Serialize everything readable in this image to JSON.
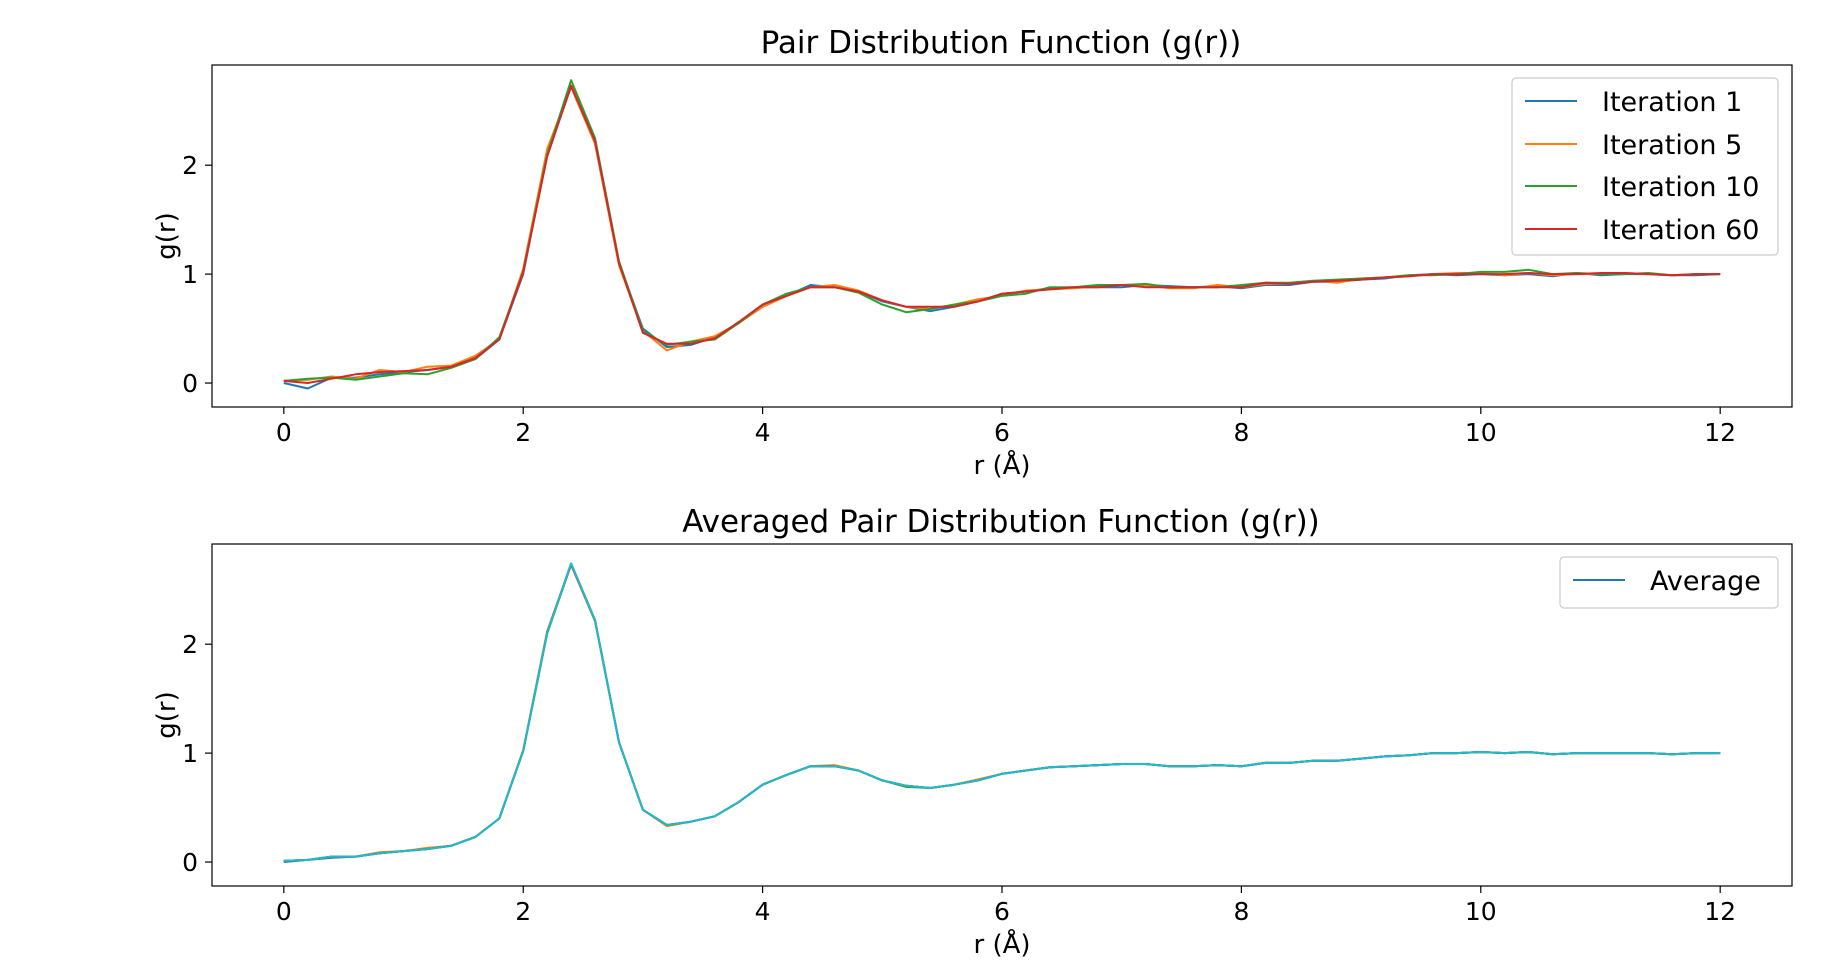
{
  "chart_data": [
    {
      "type": "line",
      "title": "Pair Distribution Function (g(r))",
      "xlabel": "r (Å)",
      "ylabel": "g(r)",
      "xlim": [
        -0.6,
        12.6
      ],
      "ylim": [
        -0.22,
        2.92
      ],
      "xticks": [
        0,
        2,
        4,
        6,
        8,
        10,
        12
      ],
      "yticks": [
        0,
        1,
        2
      ],
      "grid": false,
      "legend": "top-right",
      "x_range": [
        0,
        12
      ],
      "series": [
        {
          "name": "Iteration 1",
          "color": "#1f77b4",
          "values": [
            0.0,
            -0.05,
            0.05,
            0.05,
            0.08,
            0.1,
            0.12,
            0.15,
            0.22,
            0.4,
            1.0,
            2.1,
            2.72,
            2.2,
            1.1,
            0.5,
            0.33,
            0.35,
            0.42,
            0.55,
            0.7,
            0.8,
            0.9,
            0.88,
            0.84,
            0.75,
            0.7,
            0.66,
            0.7,
            0.75,
            0.82,
            0.84,
            0.87,
            0.88,
            0.88,
            0.88,
            0.9,
            0.89,
            0.88,
            0.89,
            0.87,
            0.9,
            0.9,
            0.93,
            0.93,
            0.95,
            0.96,
            0.99,
            1.0,
            0.99,
            1.0,
            0.99,
            1.0,
            0.98,
            1.01,
            0.99,
            1.0,
            1.0,
            0.99,
            0.99,
            1.0
          ]
        },
        {
          "name": "Iteration 5",
          "color": "#ff7f0e",
          "values": [
            0.02,
            0.03,
            0.06,
            0.04,
            0.12,
            0.1,
            0.15,
            0.16,
            0.25,
            0.4,
            1.05,
            2.15,
            2.72,
            2.2,
            1.08,
            0.48,
            0.3,
            0.38,
            0.43,
            0.55,
            0.7,
            0.8,
            0.88,
            0.9,
            0.85,
            0.76,
            0.7,
            0.68,
            0.72,
            0.77,
            0.8,
            0.85,
            0.86,
            0.87,
            0.89,
            0.9,
            0.9,
            0.87,
            0.87,
            0.9,
            0.88,
            0.91,
            0.91,
            0.94,
            0.92,
            0.96,
            0.97,
            0.98,
            1.0,
            1.01,
            1.01,
            0.99,
            1.01,
            0.99,
            1.0,
            1.0,
            1.01,
            1.0,
            0.99,
            1.0,
            1.0
          ]
        },
        {
          "name": "Iteration 10",
          "color": "#2ca02c",
          "values": [
            0.02,
            0.04,
            0.05,
            0.03,
            0.06,
            0.09,
            0.08,
            0.14,
            0.22,
            0.42,
            1.02,
            2.1,
            2.78,
            2.25,
            1.12,
            0.48,
            0.35,
            0.38,
            0.4,
            0.55,
            0.72,
            0.82,
            0.88,
            0.88,
            0.83,
            0.72,
            0.65,
            0.68,
            0.72,
            0.75,
            0.8,
            0.82,
            0.88,
            0.88,
            0.9,
            0.9,
            0.91,
            0.88,
            0.88,
            0.88,
            0.9,
            0.92,
            0.92,
            0.94,
            0.95,
            0.96,
            0.97,
            0.99,
            0.99,
            1.0,
            1.02,
            1.02,
            1.04,
            1.0,
            1.01,
            1.0,
            1.0,
            1.01,
            0.99,
            1.0,
            1.0
          ]
        },
        {
          "name": "Iteration 60",
          "color": "#d62728",
          "values": [
            0.02,
            0.0,
            0.04,
            0.08,
            0.1,
            0.11,
            0.12,
            0.15,
            0.23,
            0.4,
            1.02,
            2.08,
            2.73,
            2.22,
            1.1,
            0.46,
            0.36,
            0.36,
            0.41,
            0.56,
            0.72,
            0.8,
            0.88,
            0.88,
            0.84,
            0.76,
            0.7,
            0.7,
            0.7,
            0.75,
            0.82,
            0.84,
            0.86,
            0.88,
            0.88,
            0.9,
            0.88,
            0.88,
            0.88,
            0.88,
            0.88,
            0.92,
            0.91,
            0.93,
            0.94,
            0.95,
            0.97,
            0.98,
            1.0,
            1.0,
            1.0,
            1.0,
            1.01,
            1.0,
            1.0,
            1.01,
            1.01,
            1.0,
            0.99,
            1.0,
            1.0
          ]
        }
      ]
    },
    {
      "type": "line",
      "title": "Averaged Pair Distribution Function (g(r))",
      "xlabel": "r (Å)",
      "ylabel": "g(r)",
      "xlim": [
        -0.6,
        12.6
      ],
      "ylim": [
        -0.22,
        2.92
      ],
      "xticks": [
        0,
        2,
        4,
        6,
        8,
        10,
        12
      ],
      "yticks": [
        0,
        1,
        2
      ],
      "grid": false,
      "legend": "top-right",
      "x_range": [
        0,
        12
      ],
      "legend_entries": [
        "Average"
      ],
      "series": [
        {
          "name": "Average",
          "color": "#1f77b4",
          "values": [
            0.0,
            0.02,
            0.04,
            0.05,
            0.08,
            0.1,
            0.12,
            0.15,
            0.23,
            0.4,
            1.02,
            2.1,
            2.74,
            2.22,
            1.1,
            0.48,
            0.34,
            0.37,
            0.42,
            0.55,
            0.71,
            0.8,
            0.88,
            0.88,
            0.84,
            0.75,
            0.7,
            0.68,
            0.71,
            0.75,
            0.81,
            0.84,
            0.87,
            0.88,
            0.89,
            0.9,
            0.9,
            0.88,
            0.88,
            0.89,
            0.88,
            0.91,
            0.91,
            0.93,
            0.93,
            0.95,
            0.97,
            0.98,
            1.0,
            1.0,
            1.01,
            1.0,
            1.01,
            0.99,
            1.0,
            1.0,
            1.0,
            1.0,
            0.99,
            1.0,
            1.0
          ]
        },
        {
          "color": "#ff7f0e",
          "values": [
            0.01,
            0.02,
            0.05,
            0.05,
            0.09,
            0.1,
            0.13,
            0.15,
            0.23,
            0.4,
            1.03,
            2.12,
            2.73,
            2.21,
            1.1,
            0.48,
            0.33,
            0.37,
            0.42,
            0.55,
            0.71,
            0.8,
            0.88,
            0.89,
            0.84,
            0.75,
            0.7,
            0.68,
            0.71,
            0.76,
            0.81,
            0.84,
            0.87,
            0.88,
            0.89,
            0.9,
            0.9,
            0.88,
            0.88,
            0.89,
            0.88,
            0.91,
            0.91,
            0.93,
            0.93,
            0.95,
            0.97,
            0.98,
            1.0,
            1.0,
            1.01,
            1.0,
            1.01,
            0.99,
            1.0,
            1.0,
            1.0,
            1.0,
            0.99,
            1.0,
            1.0
          ]
        },
        {
          "color": "#2ca02c",
          "values": [
            0.01,
            0.02,
            0.05,
            0.05,
            0.08,
            0.1,
            0.12,
            0.15,
            0.23,
            0.4,
            1.02,
            2.11,
            2.74,
            2.22,
            1.1,
            0.48,
            0.34,
            0.37,
            0.42,
            0.55,
            0.71,
            0.8,
            0.88,
            0.88,
            0.84,
            0.75,
            0.69,
            0.68,
            0.71,
            0.75,
            0.81,
            0.84,
            0.87,
            0.88,
            0.89,
            0.9,
            0.9,
            0.88,
            0.88,
            0.89,
            0.88,
            0.91,
            0.91,
            0.93,
            0.93,
            0.95,
            0.97,
            0.98,
            1.0,
            1.0,
            1.01,
            1.0,
            1.01,
            0.99,
            1.0,
            1.0,
            1.0,
            1.0,
            0.99,
            1.0,
            1.0
          ]
        },
        {
          "color": "#d62728",
          "values": [
            0.01,
            0.02,
            0.05,
            0.05,
            0.08,
            0.1,
            0.12,
            0.15,
            0.23,
            0.4,
            1.02,
            2.1,
            2.73,
            2.22,
            1.1,
            0.48,
            0.34,
            0.37,
            0.42,
            0.55,
            0.71,
            0.8,
            0.88,
            0.88,
            0.84,
            0.75,
            0.7,
            0.68,
            0.71,
            0.75,
            0.81,
            0.84,
            0.87,
            0.88,
            0.89,
            0.9,
            0.9,
            0.88,
            0.88,
            0.89,
            0.88,
            0.91,
            0.91,
            0.93,
            0.93,
            0.95,
            0.97,
            0.98,
            1.0,
            1.0,
            1.01,
            1.0,
            1.01,
            0.99,
            1.0,
            1.0,
            1.0,
            1.0,
            0.99,
            1.0,
            1.0
          ]
        },
        {
          "color": "#17becf",
          "values": [
            0.01,
            0.02,
            0.05,
            0.05,
            0.08,
            0.1,
            0.12,
            0.15,
            0.23,
            0.4,
            1.02,
            2.1,
            2.74,
            2.22,
            1.1,
            0.48,
            0.34,
            0.37,
            0.42,
            0.55,
            0.71,
            0.8,
            0.88,
            0.88,
            0.84,
            0.75,
            0.7,
            0.68,
            0.71,
            0.75,
            0.81,
            0.84,
            0.87,
            0.88,
            0.89,
            0.9,
            0.9,
            0.88,
            0.88,
            0.89,
            0.88,
            0.91,
            0.91,
            0.93,
            0.93,
            0.95,
            0.97,
            0.98,
            1.0,
            1.0,
            1.01,
            1.0,
            1.01,
            0.99,
            1.0,
            1.0,
            1.0,
            1.0,
            0.99,
            1.0,
            1.0
          ]
        }
      ]
    }
  ]
}
